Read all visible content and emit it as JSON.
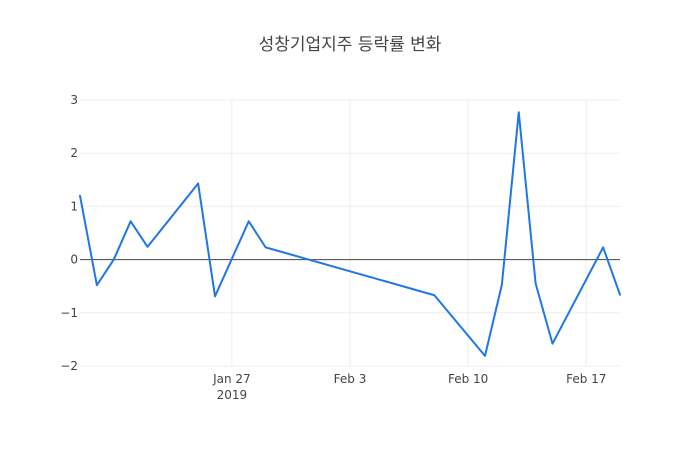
{
  "chart_data": {
    "type": "line",
    "title": "성창기업지주 등락률 변화",
    "xlabel": "",
    "ylabel": "",
    "ylim": [
      -2,
      3
    ],
    "xlim": [
      "2019-01-18",
      "2019-02-19"
    ],
    "grid": true,
    "x_ticks": [
      {
        "value": "2019-01-27",
        "label": "Jan 27",
        "sublabel": "2019"
      },
      {
        "value": "2019-02-03",
        "label": "Feb 3",
        "sublabel": ""
      },
      {
        "value": "2019-02-10",
        "label": "Feb 10",
        "sublabel": ""
      },
      {
        "value": "2019-02-17",
        "label": "Feb 17",
        "sublabel": ""
      }
    ],
    "y_ticks": [
      {
        "value": 3,
        "label": "3"
      },
      {
        "value": 2,
        "label": "2"
      },
      {
        "value": 1,
        "label": "1"
      },
      {
        "value": 0,
        "label": "0"
      },
      {
        "value": -1,
        "label": "−1"
      },
      {
        "value": -2,
        "label": "−2"
      }
    ],
    "series": [
      {
        "color": "#1f77e4",
        "x": [
          "2019-01-18",
          "2019-01-19",
          "2019-01-20",
          "2019-01-21",
          "2019-01-22",
          "2019-01-25",
          "2019-01-26",
          "2019-01-28",
          "2019-01-29",
          "2019-02-08",
          "2019-02-11",
          "2019-02-12",
          "2019-02-13",
          "2019-02-14",
          "2019-02-15",
          "2019-02-18",
          "2019-02-19"
        ],
        "y": [
          1.2,
          -0.48,
          0.0,
          0.72,
          0.24,
          1.43,
          -0.69,
          0.72,
          0.23,
          -0.67,
          -1.81,
          -0.47,
          2.77,
          -0.45,
          -1.58,
          0.23,
          -0.66
        ]
      }
    ]
  }
}
